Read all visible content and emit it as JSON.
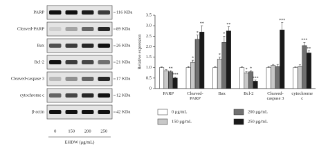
{
  "blot": {
    "rows": [
      {
        "protein": "PARP",
        "size": "116 KDa"
      },
      {
        "protein": "Cleaved-PARP",
        "size": "89 KDa"
      },
      {
        "protein": "Bax",
        "size": "26 KDa"
      },
      {
        "protein": "Bcl-2",
        "size": "21 KDa"
      },
      {
        "protein": "Cleaved-caspase 3",
        "size": "17 KDa"
      },
      {
        "protein": "cytochrome c",
        "size": "12 KDa"
      },
      {
        "protein": "β-actin",
        "size": "42 KDa"
      }
    ],
    "lanes": [
      "0",
      "150",
      "200",
      "250"
    ],
    "xlabel": "EHDW (μg/mL)"
  },
  "chart_data": {
    "type": "bar",
    "ylabel": "Relative expression",
    "categories": [
      "PARP",
      "Cleaved-PARP",
      "Bax",
      "Bcl-2",
      "Cleaved-caspase 3",
      "cytochrome c"
    ],
    "ylim": [
      0,
      3.5
    ],
    "yticks": [
      0,
      0.5,
      {
        "value": 1,
        "label": "1.0"
      },
      1.5,
      {
        "value": 2,
        "label": "2.0"
      },
      2.5,
      {
        "value": 3,
        "label": "3.0"
      },
      3.5
    ],
    "series": [
      {
        "name": "0 μg/mL",
        "color": "#ffffff",
        "values": [
          1,
          1,
          1,
          1,
          1,
          1
        ],
        "errors": [
          0.03,
          0.05,
          0.05,
          0.03,
          0.05,
          0.03
        ],
        "annotations": [
          null,
          null,
          null,
          null,
          null,
          null
        ]
      },
      {
        "name": "150 μg/mL",
        "color": "#c8c8c8",
        "values": [
          0.85,
          1.25,
          1.4,
          0.75,
          1.1,
          1.05
        ],
        "errors": [
          0.05,
          0.1,
          0.1,
          0.05,
          0.05,
          0.08
        ],
        "annotations": [
          null,
          "*",
          "*",
          "*",
          null,
          null
        ]
      },
      {
        "name": "200 μg/mL",
        "color": "#707070",
        "values": [
          0.8,
          2.35,
          2.2,
          0.8,
          1.05,
          2.05
        ],
        "errors": [
          0.05,
          0.2,
          0.3,
          0.05,
          0.1,
          0.15
        ],
        "annotations": [
          "**",
          "*",
          "*",
          "*",
          null,
          "***"
        ]
      },
      {
        "name": "250 μg/mL",
        "color": "#1a1a1a",
        "values": [
          0.5,
          2.7,
          2.75,
          0.35,
          2.8,
          1.7
        ],
        "errors": [
          0.05,
          0.3,
          0.2,
          0.05,
          0.35,
          0.1
        ],
        "annotations": [
          "***",
          "**",
          "**",
          "***",
          "***",
          "**"
        ]
      }
    ]
  }
}
